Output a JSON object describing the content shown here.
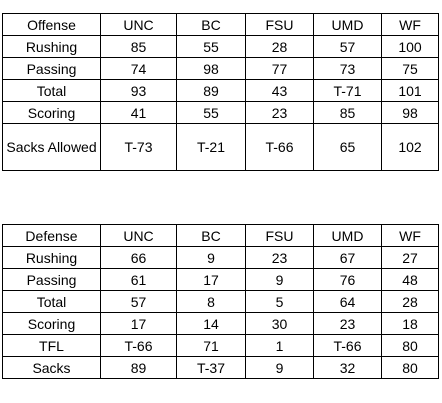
{
  "offense": {
    "header": [
      "Offense",
      "UNC",
      "BC",
      "FSU",
      "UMD",
      "WF"
    ],
    "rows": [
      [
        "Rushing",
        "85",
        "55",
        "28",
        "57",
        "100"
      ],
      [
        "Passing",
        "74",
        "98",
        "77",
        "73",
        "75"
      ],
      [
        "Total",
        "93",
        "89",
        "43",
        "T-71",
        "101"
      ],
      [
        "Scoring",
        "41",
        "55",
        "23",
        "85",
        "98"
      ],
      [
        "Sacks Allowed",
        "T-73",
        "T-21",
        "T-66",
        "65",
        "102"
      ]
    ]
  },
  "defense": {
    "header": [
      "Defense",
      "UNC",
      "BC",
      "FSU",
      "UMD",
      "WF"
    ],
    "rows": [
      [
        "Rushing",
        "66",
        "9",
        "23",
        "67",
        "27"
      ],
      [
        "Passing",
        "61",
        "17",
        "9",
        "76",
        "48"
      ],
      [
        "Total",
        "57",
        "8",
        "5",
        "64",
        "28"
      ],
      [
        "Scoring",
        "17",
        "14",
        "30",
        "23",
        "18"
      ],
      [
        "TFL",
        "T-66",
        "71",
        "1",
        "T-66",
        "80"
      ],
      [
        "Sacks",
        "89",
        "T-37",
        "9",
        "32",
        "80"
      ]
    ]
  }
}
